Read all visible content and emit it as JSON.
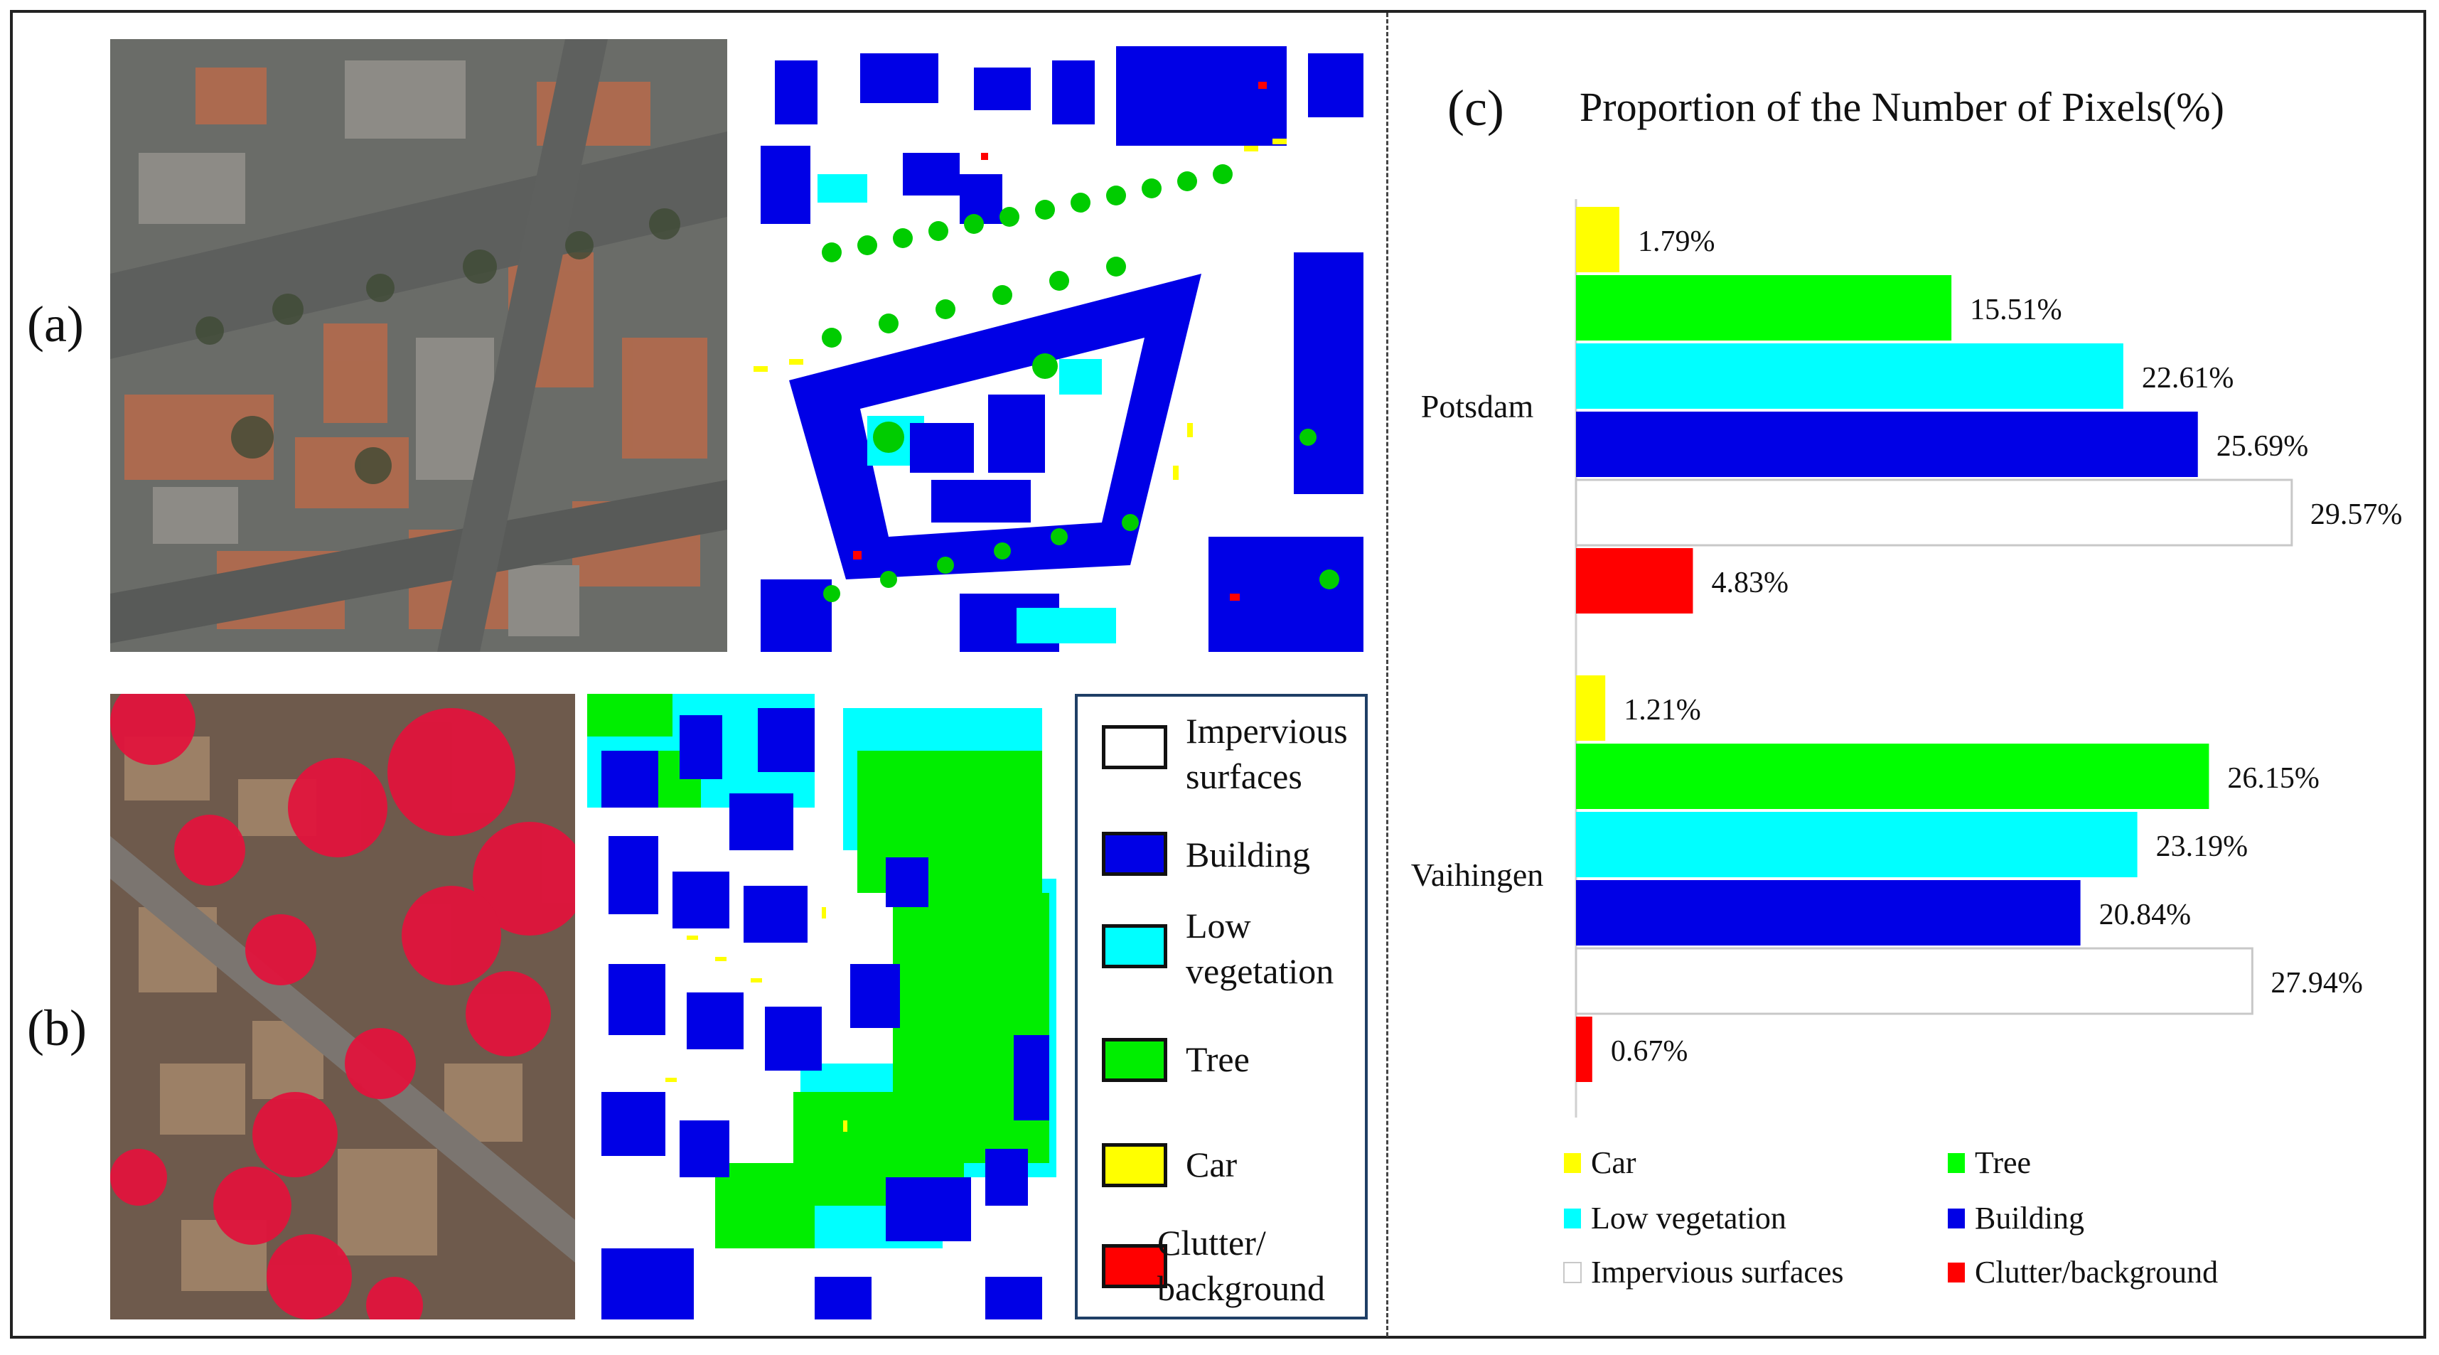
{
  "figure": {
    "label_a": "(a)",
    "label_b": "(b)",
    "label_c": "(c)"
  },
  "images": {
    "a_left": "Potsdam aerial RGB image tile",
    "a_right": "Potsdam ground-truth label map",
    "b_left": "Vaihingen IRRG aerial image tile",
    "b_right": "Vaihingen ground-truth label map"
  },
  "legend_panel": {
    "items": [
      {
        "label": "Impervious\nsurfaces",
        "color": "#ffffff"
      },
      {
        "label": "Building",
        "color": "#0000e6"
      },
      {
        "label": "Low\nvegetation",
        "color": "#00ffff"
      },
      {
        "label": "Tree",
        "color": "#00ff00"
      },
      {
        "label": "Car",
        "color": "#ffff00"
      },
      {
        "label": "Clutter/\nbackground",
        "color": "#ff0000"
      }
    ]
  },
  "chart_data": {
    "type": "bar",
    "orientation": "horizontal",
    "title": "Proportion of the Number of Pixels(%)",
    "categories": [
      "Potsdam",
      "Vaihingen"
    ],
    "series": [
      {
        "name": "Car",
        "color": "#ffff00",
        "values": [
          1.79,
          1.21
        ],
        "labels": [
          "1.79%",
          "1.21%"
        ]
      },
      {
        "name": "Tree",
        "color": "#00ff00",
        "values": [
          15.51,
          26.15
        ],
        "labels": [
          "15.51%",
          "26.15%"
        ]
      },
      {
        "name": "Low vegetation",
        "color": "#00ffff",
        "values": [
          22.61,
          23.19
        ],
        "labels": [
          "22.61%",
          "23.19%"
        ]
      },
      {
        "name": "Building",
        "color": "#0000e6",
        "values": [
          25.69,
          20.84
        ],
        "labels": [
          "25.69%",
          "20.84%"
        ]
      },
      {
        "name": "Impervious surfaces",
        "color": "#ffffff",
        "values": [
          29.57,
          27.94
        ],
        "labels": [
          "29.57%",
          "27.94%"
        ]
      },
      {
        "name": "Clutter/background",
        "color": "#ff0000",
        "values": [
          4.83,
          0.67
        ],
        "labels": [
          "4.83%",
          "0.67%"
        ]
      }
    ],
    "xlim": [
      0,
      30
    ],
    "grid": false,
    "legend_position": "bottom",
    "legend_order": [
      "Car",
      "Tree",
      "Low vegetation",
      "Building",
      "Impervious surfaces",
      "Clutter/background"
    ]
  }
}
